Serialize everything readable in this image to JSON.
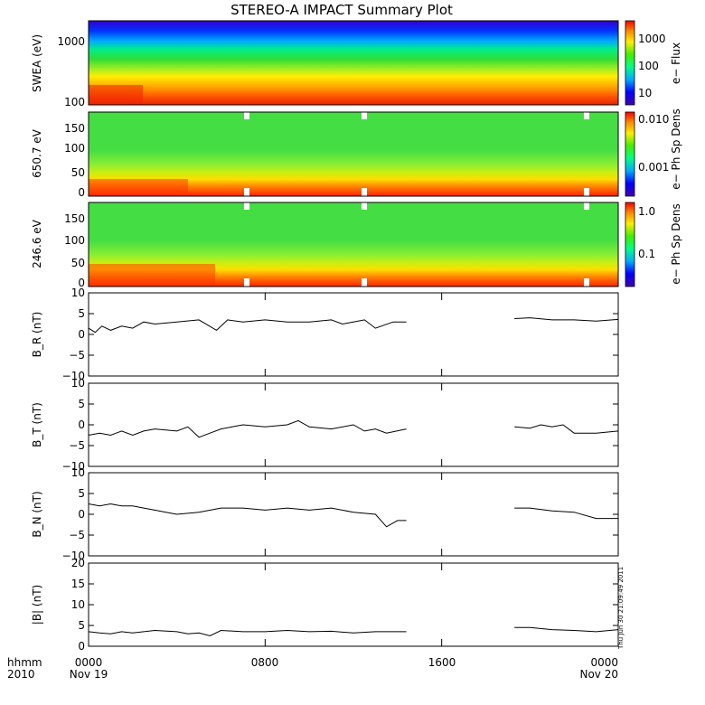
{
  "title": "STEREO-A IMPACT Summary Plot",
  "timestamp": "Thu Jun 30 21:09:49 2011",
  "footer": {
    "left_line1": "hhmm",
    "left_line2": "2010",
    "first_date": "Nov 19",
    "last_date": "Nov 20"
  },
  "chart_data": [
    {
      "type": "heatmap",
      "panel": "swea",
      "ylabel": "SWEA (eV)",
      "yscale": "log",
      "ylim": [
        90,
        2000
      ],
      "yticks": [
        "1000",
        "100"
      ],
      "colorbar": {
        "label": "e− Flux",
        "scale": "log",
        "ticks": [
          "1000",
          "100",
          "10"
        ]
      }
    },
    {
      "type": "heatmap",
      "panel": "pad650",
      "ylabel": "650.7 eV",
      "ylim": [
        0,
        180
      ],
      "yticks": [
        "150",
        "100",
        "50",
        "0"
      ],
      "colorbar": {
        "label": "e− Ph Sp Dens",
        "scale": "log",
        "ticks": [
          "0.010",
          "0.001"
        ]
      }
    },
    {
      "type": "heatmap",
      "panel": "pad246",
      "ylabel": "246.6 eV",
      "ylim": [
        0,
        180
      ],
      "yticks": [
        "150",
        "100",
        "50",
        "0"
      ],
      "colorbar": {
        "label": "e− Ph Sp Dens",
        "scale": "log",
        "ticks": [
          "1.0",
          "0.1"
        ]
      }
    },
    {
      "type": "line",
      "panel": "br",
      "ylabel": "B_R (nT)",
      "ylim": [
        -10,
        10
      ],
      "yticks": [
        "10",
        "5",
        "0",
        "−5",
        "−10"
      ],
      "series": [
        {
          "x": [
            0,
            0.3,
            0.6,
            1.0,
            1.5,
            2.0,
            2.5,
            3.0,
            4.0,
            5.0,
            5.8,
            6.3,
            7.0,
            8.0,
            9.0,
            10.0,
            11.0,
            11.5,
            12.0,
            12.5,
            13.0,
            13.8,
            14.4
          ],
          "y": [
            1.5,
            0.5,
            2.0,
            1.0,
            2.0,
            1.5,
            3.0,
            2.5,
            3.0,
            3.5,
            1.0,
            3.5,
            3.0,
            3.5,
            3.0,
            3.0,
            3.5,
            2.5,
            3.0,
            3.5,
            1.5,
            3.0,
            3.0
          ]
        },
        {
          "x": [
            19.3,
            20.0,
            21.0,
            22.0,
            23.0,
            24.0
          ],
          "y": [
            3.8,
            4.0,
            3.5,
            3.5,
            3.2,
            3.6
          ]
        }
      ]
    },
    {
      "type": "line",
      "panel": "bt",
      "ylabel": "B_T (nT)",
      "ylim": [
        -10,
        10
      ],
      "yticks": [
        "10",
        "5",
        "0",
        "−5",
        "−10"
      ],
      "series": [
        {
          "x": [
            0,
            0.5,
            1.0,
            1.5,
            2.0,
            2.5,
            3.0,
            4.0,
            4.5,
            5.0,
            5.5,
            6.0,
            6.5,
            7.0,
            8.0,
            9.0,
            9.5,
            10.0,
            11.0,
            12.0,
            12.5,
            13.0,
            13.5,
            14.4
          ],
          "y": [
            -2.5,
            -2.0,
            -2.5,
            -1.5,
            -2.5,
            -1.5,
            -1.0,
            -1.5,
            -0.5,
            -3.0,
            -2.0,
            -1.0,
            -0.5,
            0.0,
            -0.5,
            0.0,
            1.0,
            -0.5,
            -1.0,
            0.0,
            -1.5,
            -1.0,
            -2.0,
            -1.0
          ]
        },
        {
          "x": [
            19.3,
            20.0,
            20.5,
            21.0,
            21.5,
            22.0,
            23.0,
            24.0
          ],
          "y": [
            -0.5,
            -0.8,
            0.0,
            -0.5,
            0.0,
            -2.0,
            -2.0,
            -1.5
          ]
        }
      ]
    },
    {
      "type": "line",
      "panel": "bn",
      "ylabel": "B_N (nT)",
      "ylim": [
        -10,
        10
      ],
      "yticks": [
        "10",
        "5",
        "0",
        "−5",
        "−10"
      ],
      "series": [
        {
          "x": [
            0,
            0.5,
            1.0,
            1.5,
            2.0,
            2.5,
            3.0,
            3.5,
            4.0,
            5.0,
            6.0,
            7.0,
            8.0,
            9.0,
            10.0,
            11.0,
            12.0,
            13.0,
            13.5,
            14.0,
            14.4
          ],
          "y": [
            2.5,
            2.0,
            2.5,
            2.0,
            2.0,
            1.5,
            1.0,
            0.5,
            0.0,
            0.5,
            1.5,
            1.5,
            1.0,
            1.5,
            1.0,
            1.5,
            0.5,
            0.0,
            -3.0,
            -1.5,
            -1.5
          ]
        },
        {
          "x": [
            19.3,
            20.0,
            21.0,
            22.0,
            23.0,
            24.0
          ],
          "y": [
            1.5,
            1.5,
            0.8,
            0.5,
            -1.0,
            -1.0
          ]
        }
      ]
    },
    {
      "type": "line",
      "panel": "bmag",
      "ylabel": "|B| (nT)",
      "ylim": [
        0,
        20
      ],
      "yticks": [
        "20",
        "15",
        "10",
        "5",
        "0"
      ],
      "series": [
        {
          "x": [
            0,
            0.5,
            1.0,
            1.5,
            2.0,
            3.0,
            4.0,
            4.5,
            5.0,
            5.5,
            6.0,
            7.0,
            8.0,
            9.0,
            10.0,
            11.0,
            12.0,
            13.0,
            14.0,
            14.4
          ],
          "y": [
            3.5,
            3.2,
            3.0,
            3.5,
            3.2,
            3.8,
            3.5,
            3.0,
            3.2,
            2.5,
            3.8,
            3.5,
            3.5,
            3.8,
            3.5,
            3.6,
            3.2,
            3.5,
            3.5,
            3.5
          ]
        },
        {
          "x": [
            19.3,
            20.0,
            21.0,
            22.0,
            23.0,
            24.0
          ],
          "y": [
            4.5,
            4.5,
            4.0,
            3.8,
            3.5,
            4.0
          ]
        }
      ]
    }
  ],
  "x_axis": {
    "ticks": [
      "0000",
      "0800",
      "1600",
      "0000"
    ],
    "tick_hours": [
      0,
      8,
      16,
      24
    ],
    "xlim_hours": [
      0,
      24
    ]
  }
}
